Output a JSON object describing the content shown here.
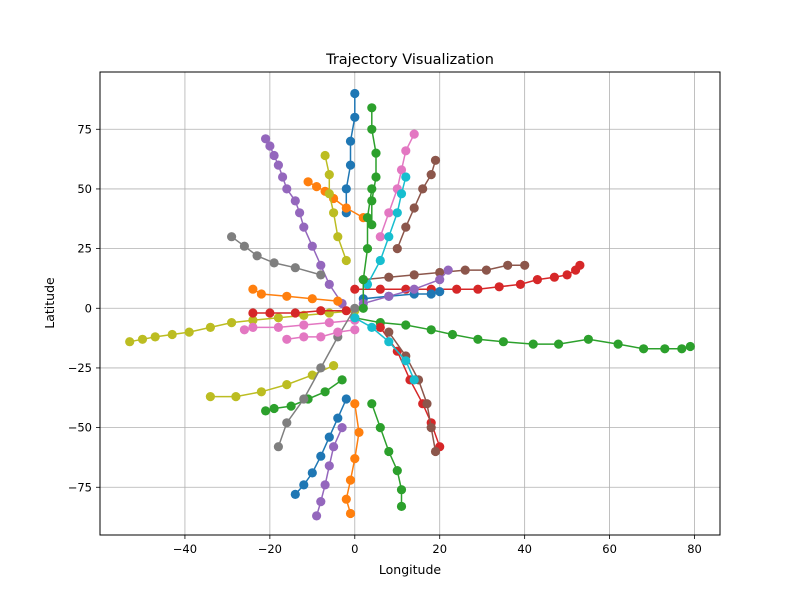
{
  "chart_data": {
    "type": "line",
    "title": "Trajectory Visualization",
    "xlabel": "Longitude",
    "ylabel": "Latitude",
    "xlim": [
      -60,
      86
    ],
    "ylim": [
      -95,
      99
    ],
    "xticks": [
      -40,
      -20,
      0,
      20,
      40,
      60,
      80
    ],
    "yticks": [
      -75,
      -50,
      -25,
      0,
      25,
      50,
      75
    ],
    "xtick_labels": [
      "−40",
      "−20",
      "0",
      "20",
      "40",
      "60",
      "80"
    ],
    "ytick_labels": [
      "−75",
      "−50",
      "−25",
      "0",
      "25",
      "50",
      "75"
    ],
    "grid": true,
    "marker": "circle",
    "colors": [
      "#1f77b4",
      "#ff7f0e",
      "#2ca02c",
      "#d62728",
      "#9467bd",
      "#8c564b",
      "#e377c2",
      "#7f7f7f",
      "#bcbd22",
      "#17becf"
    ],
    "series": [
      {
        "color": "#2ca02c",
        "x": [
          0,
          6,
          12,
          18,
          23,
          29,
          35,
          42,
          48,
          55,
          62,
          68,
          73,
          77,
          79
        ],
        "y": [
          -4,
          -6,
          -7,
          -9,
          -11,
          -13,
          -14,
          -15,
          -15,
          -13,
          -15,
          -17,
          -17,
          -17,
          -16
        ]
      },
      {
        "color": "#bcbd22",
        "x": [
          0,
          -6,
          -12,
          -18,
          -24,
          -29,
          -34,
          -39,
          -43,
          -47,
          -50,
          -53
        ],
        "y": [
          -1,
          -2,
          -3,
          -4,
          -5,
          -6,
          -8,
          -10,
          -11,
          -12,
          -13,
          -14
        ]
      },
      {
        "color": "#d62728",
        "x": [
          0,
          6,
          12,
          18,
          24,
          29,
          34,
          39,
          43,
          47,
          50,
          52,
          53
        ],
        "y": [
          8,
          8,
          8,
          8,
          8,
          8,
          9,
          10,
          12,
          13,
          14,
          16,
          18
        ]
      },
      {
        "color": "#8c564b",
        "x": [
          2,
          8,
          14,
          20,
          26,
          31,
          36,
          40
        ],
        "y": [
          12,
          13,
          14,
          15,
          16,
          16,
          18,
          18
        ]
      },
      {
        "color": "#9467bd",
        "x": [
          -3,
          -6,
          -8,
          -10,
          -12,
          -13,
          -14,
          -16,
          -17,
          -18,
          -19,
          -20,
          -21
        ],
        "y": [
          2,
          10,
          18,
          26,
          34,
          40,
          45,
          50,
          55,
          60,
          64,
          68,
          71
        ]
      },
      {
        "color": "#7f7f7f",
        "x": [
          -8,
          -14,
          -19,
          -23,
          -26,
          -29
        ],
        "y": [
          14,
          17,
          19,
          22,
          26,
          30
        ]
      },
      {
        "color": "#bcbd22",
        "x": [
          -5,
          -10,
          -16,
          -22,
          -28,
          -34
        ],
        "y": [
          -24,
          -28,
          -32,
          -35,
          -37,
          -37
        ]
      },
      {
        "color": "#2ca02c",
        "x": [
          -3,
          -7,
          -11,
          -15,
          -19,
          -21
        ],
        "y": [
          -30,
          -35,
          -38,
          -41,
          -42,
          -43
        ]
      },
      {
        "color": "#1f77b4",
        "x": [
          -2,
          -4,
          -6,
          -8,
          -10,
          -12,
          -14
        ],
        "y": [
          -38,
          -46,
          -54,
          -62,
          -69,
          -74,
          -78
        ]
      },
      {
        "color": "#9467bd",
        "x": [
          -3,
          -5,
          -6,
          -7,
          -8,
          -9
        ],
        "y": [
          -50,
          -58,
          -66,
          -74,
          -81,
          -87
        ]
      },
      {
        "color": "#ff7f0e",
        "x": [
          0,
          1,
          0,
          -1,
          -2,
          -1
        ],
        "y": [
          -40,
          -52,
          -63,
          -72,
          -80,
          -86
        ]
      },
      {
        "color": "#2ca02c",
        "x": [
          4,
          6,
          8,
          10,
          11,
          11
        ],
        "y": [
          -40,
          -50,
          -60,
          -68,
          -76,
          -83
        ]
      },
      {
        "color": "#1f77b4",
        "x": [
          -2,
          -2,
          -1,
          -1,
          0,
          0
        ],
        "y": [
          40,
          50,
          60,
          70,
          80,
          90
        ]
      },
      {
        "color": "#2ca02c",
        "x": [
          4,
          4,
          5,
          5,
          4,
          4
        ],
        "y": [
          35,
          45,
          55,
          65,
          75,
          84
        ]
      },
      {
        "color": "#e377c2",
        "x": [
          6,
          8,
          10,
          11,
          12,
          14
        ],
        "y": [
          30,
          40,
          50,
          58,
          66,
          73
        ]
      },
      {
        "color": "#8c564b",
        "x": [
          10,
          12,
          14,
          16,
          18,
          19
        ],
        "y": [
          25,
          34,
          42,
          50,
          56,
          62
        ]
      },
      {
        "color": "#ff7f0e",
        "x": [
          2,
          -2,
          -5,
          -7,
          -9,
          -11
        ],
        "y": [
          38,
          42,
          46,
          49,
          51,
          53
        ]
      },
      {
        "color": "#bcbd22",
        "x": [
          -2,
          -4,
          -5,
          -6,
          -6,
          -7
        ],
        "y": [
          20,
          30,
          40,
          48,
          56,
          64
        ]
      },
      {
        "color": "#e377c2",
        "x": [
          0,
          -6,
          -12,
          -18,
          -24,
          -26
        ],
        "y": [
          -5,
          -6,
          -7,
          -8,
          -8,
          -9
        ]
      },
      {
        "color": "#d62728",
        "x": [
          6,
          10,
          13,
          16,
          18,
          20
        ],
        "y": [
          -8,
          -18,
          -30,
          -40,
          -48,
          -58
        ]
      },
      {
        "color": "#8c564b",
        "x": [
          8,
          12,
          15,
          17,
          18,
          19
        ],
        "y": [
          -10,
          -20,
          -30,
          -40,
          -50,
          -60
        ]
      },
      {
        "color": "#17becf",
        "x": [
          3,
          6,
          8,
          10,
          11,
          12
        ],
        "y": [
          10,
          20,
          30,
          40,
          48,
          55
        ]
      },
      {
        "color": "#ff7f0e",
        "x": [
          -4,
          -10,
          -16,
          -22,
          -24
        ],
        "y": [
          3,
          4,
          5,
          6,
          8
        ]
      },
      {
        "color": "#d62728",
        "x": [
          -2,
          -8,
          -14,
          -20,
          -24
        ],
        "y": [
          -1,
          -1,
          -2,
          -2,
          -2
        ]
      },
      {
        "color": "#1f77b4",
        "x": [
          2,
          8,
          14,
          18,
          20
        ],
        "y": [
          4,
          5,
          6,
          6,
          7
        ]
      },
      {
        "color": "#9467bd",
        "x": [
          2,
          8,
          14,
          20,
          22
        ],
        "y": [
          2,
          5,
          8,
          12,
          16
        ]
      },
      {
        "color": "#17becf",
        "x": [
          0,
          4,
          8,
          12,
          14
        ],
        "y": [
          -4,
          -8,
          -14,
          -22,
          -30
        ]
      },
      {
        "color": "#7f7f7f",
        "x": [
          0,
          -4,
          -8,
          -12,
          -16,
          -18
        ],
        "y": [
          0,
          -12,
          -25,
          -38,
          -48,
          -58
        ]
      },
      {
        "color": "#2ca02c",
        "x": [
          2,
          2,
          3,
          3,
          4
        ],
        "y": [
          0,
          12,
          25,
          38,
          50
        ]
      },
      {
        "color": "#e377c2",
        "x": [
          0,
          -4,
          -8,
          -12,
          -16
        ],
        "y": [
          -9,
          -10,
          -12,
          -12,
          -13
        ]
      }
    ]
  }
}
